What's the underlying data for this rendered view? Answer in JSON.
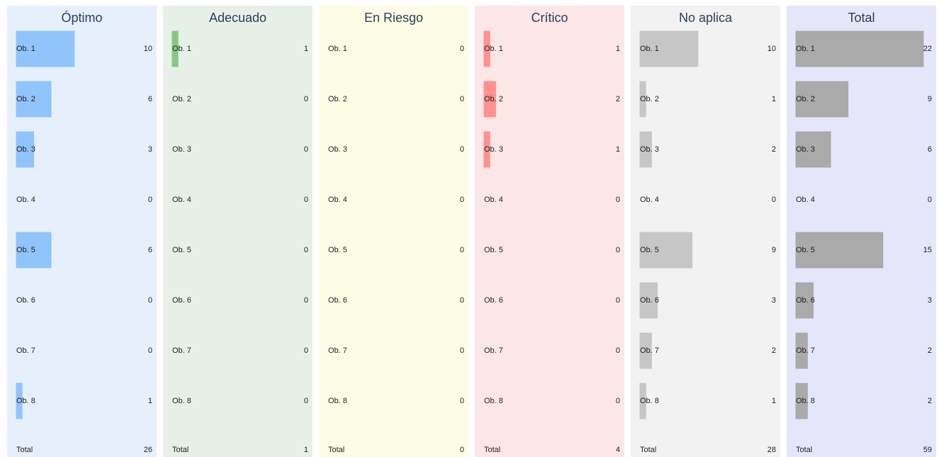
{
  "chart_data": [
    {
      "type": "bar",
      "title": "Óptimo",
      "background": "#e6f0fc",
      "color": "#8cc2fb",
      "categories": [
        "Ob. 1",
        "Ob. 2",
        "Ob. 3",
        "Ob. 4",
        "Ob. 5",
        "Ob. 6",
        "Ob. 7",
        "Ob. 8"
      ],
      "values": [
        10,
        6,
        3,
        0,
        6,
        0,
        0,
        1
      ],
      "total_label": "Total",
      "total": 26,
      "xlim": [
        0,
        22
      ]
    },
    {
      "type": "bar",
      "title": "Adecuado",
      "background": "#e6f0e6",
      "color": "#7ec67e",
      "categories": [
        "Ob. 1",
        "Ob. 2",
        "Ob. 3",
        "Ob. 4",
        "Ob. 5",
        "Ob. 6",
        "Ob. 7",
        "Ob. 8"
      ],
      "values": [
        1,
        0,
        0,
        0,
        0,
        0,
        0,
        0
      ],
      "total_label": "Total",
      "total": 1,
      "xlim": [
        0,
        22
      ]
    },
    {
      "type": "bar",
      "title": "En Riesgo",
      "background": "#fdfde6",
      "color": "#f0e060",
      "categories": [
        "Ob. 1",
        "Ob. 2",
        "Ob. 3",
        "Ob. 4",
        "Ob. 5",
        "Ob. 6",
        "Ob. 7",
        "Ob. 8"
      ],
      "values": [
        0,
        0,
        0,
        0,
        0,
        0,
        0,
        0
      ],
      "total_label": "Total",
      "total": 0,
      "xlim": [
        0,
        22
      ]
    },
    {
      "type": "bar",
      "title": "Crítico",
      "background": "#fde6e6",
      "color": "#ff8c8c",
      "categories": [
        "Ob. 1",
        "Ob. 2",
        "Ob. 3",
        "Ob. 4",
        "Ob. 5",
        "Ob. 6",
        "Ob. 7",
        "Ob. 8"
      ],
      "values": [
        1,
        2,
        1,
        0,
        0,
        0,
        0,
        0
      ],
      "total_label": "Total",
      "total": 4,
      "xlim": [
        0,
        22
      ]
    },
    {
      "type": "bar",
      "title": "No aplica",
      "background": "#f2f2f2",
      "color": "#c4c4c4",
      "categories": [
        "Ob. 1",
        "Ob. 2",
        "Ob. 3",
        "Ob. 4",
        "Ob. 5",
        "Ob. 6",
        "Ob. 7",
        "Ob. 8"
      ],
      "values": [
        10,
        1,
        2,
        0,
        9,
        3,
        2,
        1
      ],
      "total_label": "Total",
      "total": 28,
      "xlim": [
        0,
        22
      ]
    },
    {
      "type": "bar",
      "title": "Total",
      "background": "#e6e6fa",
      "color": "#a6a6a6",
      "categories": [
        "Ob. 1",
        "Ob. 2",
        "Ob. 3",
        "Ob. 4",
        "Ob. 5",
        "Ob. 6",
        "Ob. 7",
        "Ob. 8"
      ],
      "values": [
        22,
        9,
        6,
        0,
        15,
        3,
        2,
        2
      ],
      "total_label": "Total",
      "total": 59,
      "xlim": [
        0,
        22
      ]
    }
  ]
}
